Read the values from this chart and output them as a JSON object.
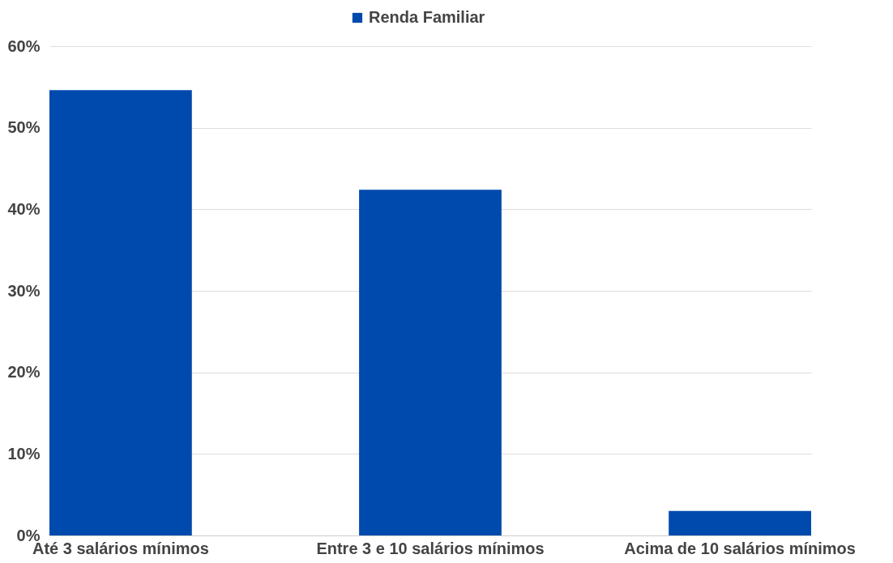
{
  "chart_data": {
    "type": "bar",
    "categories": [
      "Até 3 salários mínimos",
      "Entre 3 e 10 salários mínimos",
      "Acima de 10 salários mínimos"
    ],
    "series": [
      {
        "name": "Renda Familiar",
        "color": "#004aad",
        "values": [
          54.6,
          42.4,
          3.0
        ]
      }
    ],
    "ylim": [
      0,
      60
    ],
    "yticks": [
      {
        "value": 0,
        "label": "0%"
      },
      {
        "value": 10,
        "label": "10%"
      },
      {
        "value": 20,
        "label": "20%"
      },
      {
        "value": 30,
        "label": "30%"
      },
      {
        "value": 40,
        "label": "40%"
      },
      {
        "value": 50,
        "label": "50%"
      },
      {
        "value": 60,
        "label": "60%"
      }
    ],
    "grid": "y",
    "legend": "top"
  }
}
